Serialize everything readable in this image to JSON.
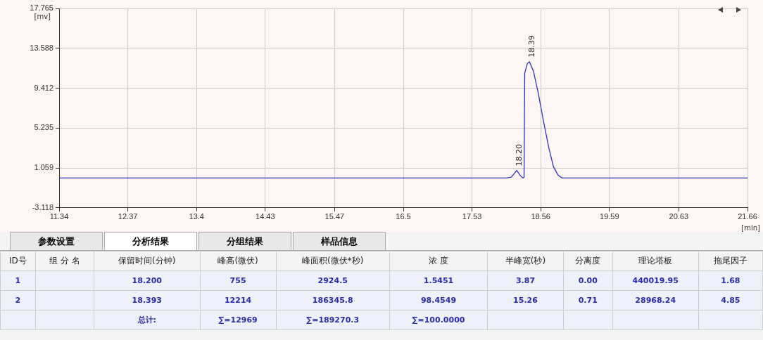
{
  "chart_data": [
    {
      "type": "line",
      "xlabel": "[min]",
      "ylabel": "[mv]",
      "xlim": [
        11.34,
        21.66
      ],
      "xticks": [
        11.34,
        12.37,
        13.4,
        14.43,
        15.47,
        16.5,
        17.53,
        18.56,
        19.59,
        20.63,
        21.66
      ],
      "ylim": [
        -3.118,
        17.765
      ],
      "yticks": [
        -3.118,
        1.059,
        5.235,
        9.412,
        13.588,
        17.765
      ],
      "grid": true,
      "legend": false,
      "marker": "none",
      "line_style": "solid",
      "series": [
        {
          "color": "#3030c0",
          "x": [
            11.34,
            18.05,
            18.12,
            18.2,
            18.26,
            18.3,
            18.31,
            18.32,
            18.36,
            18.39,
            18.45,
            18.52,
            18.6,
            18.68,
            18.75,
            18.82,
            18.88,
            18.95,
            21.66
          ],
          "values": [
            0,
            0,
            0.1,
            0.8,
            0.2,
            0,
            0.1,
            11.0,
            12.0,
            12.2,
            11.2,
            9.0,
            6.0,
            3.2,
            1.2,
            0.3,
            0,
            0,
            0
          ]
        }
      ],
      "annotations": [
        {
          "text": "18.20",
          "x": 18.2,
          "y": 0.8
        },
        {
          "text": "18.39",
          "x": 18.39,
          "y": 12.2
        }
      ]
    },
    {
      "type": "other",
      "annotations": [
        "参数设置",
        "分析结果",
        "分组结果",
        "样品信息"
      ],
      "categories": [
        "ID号",
        "组 分 名",
        "保留时间(分钟)",
        "峰高(微伏)",
        "峰面积(微伏*秒)",
        "浓 度",
        "半峰宽(秒)",
        "分离度",
        "理论塔板",
        "拖尾因子"
      ],
      "cell_labels": [
        [
          "1",
          null,
          "18.200",
          "755",
          "2924.5",
          "1.5451",
          "3.87",
          "0.00",
          "440019.95",
          "1.68"
        ],
        [
          "2",
          null,
          "18.393",
          "12214",
          "186345.8",
          "98.4549",
          "15.26",
          "0.71",
          "28968.24",
          "4.85"
        ],
        [
          null,
          null,
          "总计:",
          "∑=12969",
          "∑=189270.3",
          "∑=100.0000",
          null,
          null,
          null,
          null
        ]
      ]
    }
  ]
}
